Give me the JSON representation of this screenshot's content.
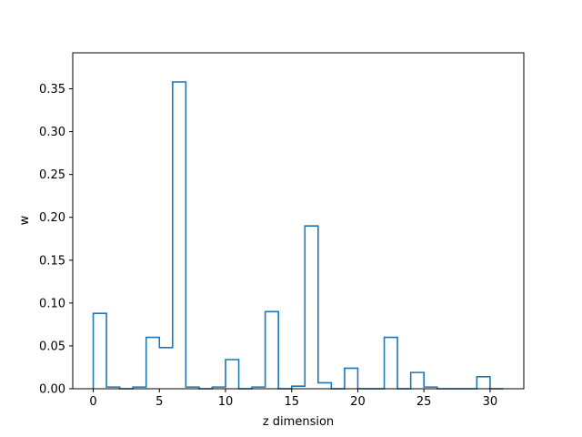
{
  "chart_data": {
    "type": "bar",
    "style": "step-outline",
    "color": "#1f77b4",
    "xlabel": "z dimension",
    "ylabel": "w",
    "x": [
      0,
      1,
      2,
      3,
      4,
      5,
      6,
      7,
      8,
      9,
      10,
      11,
      12,
      13,
      14,
      15,
      16,
      17,
      18,
      19,
      20,
      21,
      22,
      23,
      24,
      25,
      26,
      27,
      28,
      29,
      30
    ],
    "values": [
      0.088,
      0.002,
      0.0,
      0.002,
      0.06,
      0.048,
      0.358,
      0.002,
      0.0,
      0.002,
      0.034,
      0.0,
      0.002,
      0.09,
      0.0,
      0.003,
      0.19,
      0.007,
      0.0,
      0.024,
      0.0,
      0.0,
      0.06,
      0.0,
      0.019,
      0.002,
      0.0,
      0.0,
      0.0,
      0.014,
      0.0
    ],
    "xlim": [
      -1.55,
      32.55
    ],
    "ylim": [
      0,
      0.392
    ],
    "xticks": [
      0,
      5,
      10,
      15,
      20,
      25,
      30
    ],
    "xtick_labels": [
      "0",
      "5",
      "10",
      "15",
      "20",
      "25",
      "30"
    ],
    "yticks": [
      0.0,
      0.05,
      0.1,
      0.15,
      0.2,
      0.25,
      0.3,
      0.35
    ],
    "ytick_labels": [
      "0.00",
      "0.05",
      "0.10",
      "0.15",
      "0.20",
      "0.25",
      "0.30",
      "0.35"
    ],
    "grid": false,
    "legend": false
  }
}
